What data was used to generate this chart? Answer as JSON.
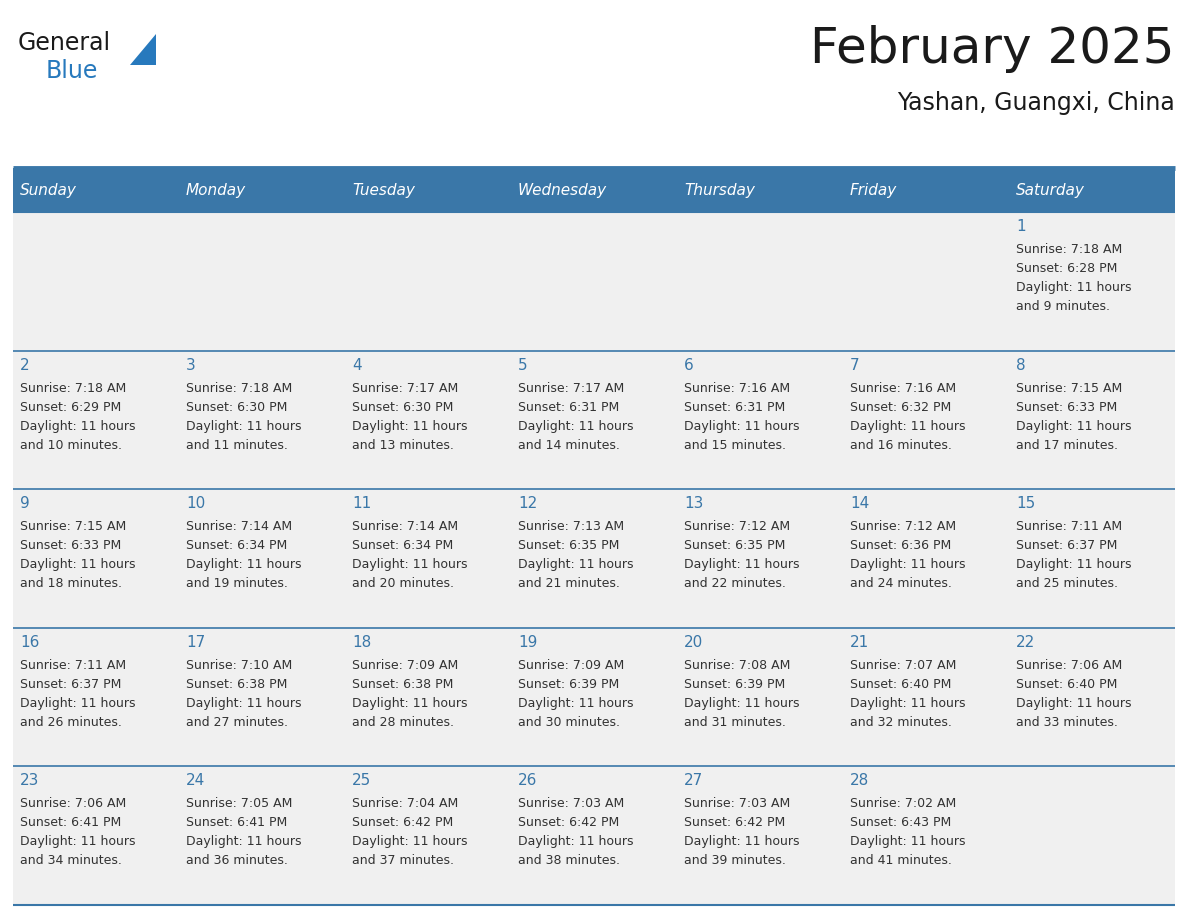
{
  "title": "February 2025",
  "subtitle": "Yashan, Guangxi, China",
  "header_color": "#3a77a8",
  "header_text_color": "#FFFFFF",
  "day_names": [
    "Sunday",
    "Monday",
    "Tuesday",
    "Wednesday",
    "Thursday",
    "Friday",
    "Saturday"
  ],
  "title_color": "#1a1a1a",
  "subtitle_color": "#1a1a1a",
  "cell_bg_color": "#f0f0f0",
  "divider_color": "#3a77a8",
  "day_num_color": "#3a77a8",
  "text_color": "#333333",
  "days": [
    {
      "day": 1,
      "col": 6,
      "row": 0,
      "sunrise": "7:18 AM",
      "sunset": "6:28 PM",
      "daylight": "11 hours and 9 minutes"
    },
    {
      "day": 2,
      "col": 0,
      "row": 1,
      "sunrise": "7:18 AM",
      "sunset": "6:29 PM",
      "daylight": "11 hours and 10 minutes"
    },
    {
      "day": 3,
      "col": 1,
      "row": 1,
      "sunrise": "7:18 AM",
      "sunset": "6:30 PM",
      "daylight": "11 hours and 11 minutes"
    },
    {
      "day": 4,
      "col": 2,
      "row": 1,
      "sunrise": "7:17 AM",
      "sunset": "6:30 PM",
      "daylight": "11 hours and 13 minutes"
    },
    {
      "day": 5,
      "col": 3,
      "row": 1,
      "sunrise": "7:17 AM",
      "sunset": "6:31 PM",
      "daylight": "11 hours and 14 minutes"
    },
    {
      "day": 6,
      "col": 4,
      "row": 1,
      "sunrise": "7:16 AM",
      "sunset": "6:31 PM",
      "daylight": "11 hours and 15 minutes"
    },
    {
      "day": 7,
      "col": 5,
      "row": 1,
      "sunrise": "7:16 AM",
      "sunset": "6:32 PM",
      "daylight": "11 hours and 16 minutes"
    },
    {
      "day": 8,
      "col": 6,
      "row": 1,
      "sunrise": "7:15 AM",
      "sunset": "6:33 PM",
      "daylight": "11 hours and 17 minutes"
    },
    {
      "day": 9,
      "col": 0,
      "row": 2,
      "sunrise": "7:15 AM",
      "sunset": "6:33 PM",
      "daylight": "11 hours and 18 minutes"
    },
    {
      "day": 10,
      "col": 1,
      "row": 2,
      "sunrise": "7:14 AM",
      "sunset": "6:34 PM",
      "daylight": "11 hours and 19 minutes"
    },
    {
      "day": 11,
      "col": 2,
      "row": 2,
      "sunrise": "7:14 AM",
      "sunset": "6:34 PM",
      "daylight": "11 hours and 20 minutes"
    },
    {
      "day": 12,
      "col": 3,
      "row": 2,
      "sunrise": "7:13 AM",
      "sunset": "6:35 PM",
      "daylight": "11 hours and 21 minutes"
    },
    {
      "day": 13,
      "col": 4,
      "row": 2,
      "sunrise": "7:12 AM",
      "sunset": "6:35 PM",
      "daylight": "11 hours and 22 minutes"
    },
    {
      "day": 14,
      "col": 5,
      "row": 2,
      "sunrise": "7:12 AM",
      "sunset": "6:36 PM",
      "daylight": "11 hours and 24 minutes"
    },
    {
      "day": 15,
      "col": 6,
      "row": 2,
      "sunrise": "7:11 AM",
      "sunset": "6:37 PM",
      "daylight": "11 hours and 25 minutes"
    },
    {
      "day": 16,
      "col": 0,
      "row": 3,
      "sunrise": "7:11 AM",
      "sunset": "6:37 PM",
      "daylight": "11 hours and 26 minutes"
    },
    {
      "day": 17,
      "col": 1,
      "row": 3,
      "sunrise": "7:10 AM",
      "sunset": "6:38 PM",
      "daylight": "11 hours and 27 minutes"
    },
    {
      "day": 18,
      "col": 2,
      "row": 3,
      "sunrise": "7:09 AM",
      "sunset": "6:38 PM",
      "daylight": "11 hours and 28 minutes"
    },
    {
      "day": 19,
      "col": 3,
      "row": 3,
      "sunrise": "7:09 AM",
      "sunset": "6:39 PM",
      "daylight": "11 hours and 30 minutes"
    },
    {
      "day": 20,
      "col": 4,
      "row": 3,
      "sunrise": "7:08 AM",
      "sunset": "6:39 PM",
      "daylight": "11 hours and 31 minutes"
    },
    {
      "day": 21,
      "col": 5,
      "row": 3,
      "sunrise": "7:07 AM",
      "sunset": "6:40 PM",
      "daylight": "11 hours and 32 minutes"
    },
    {
      "day": 22,
      "col": 6,
      "row": 3,
      "sunrise": "7:06 AM",
      "sunset": "6:40 PM",
      "daylight": "11 hours and 33 minutes"
    },
    {
      "day": 23,
      "col": 0,
      "row": 4,
      "sunrise": "7:06 AM",
      "sunset": "6:41 PM",
      "daylight": "11 hours and 34 minutes"
    },
    {
      "day": 24,
      "col": 1,
      "row": 4,
      "sunrise": "7:05 AM",
      "sunset": "6:41 PM",
      "daylight": "11 hours and 36 minutes"
    },
    {
      "day": 25,
      "col": 2,
      "row": 4,
      "sunrise": "7:04 AM",
      "sunset": "6:42 PM",
      "daylight": "11 hours and 37 minutes"
    },
    {
      "day": 26,
      "col": 3,
      "row": 4,
      "sunrise": "7:03 AM",
      "sunset": "6:42 PM",
      "daylight": "11 hours and 38 minutes"
    },
    {
      "day": 27,
      "col": 4,
      "row": 4,
      "sunrise": "7:03 AM",
      "sunset": "6:42 PM",
      "daylight": "11 hours and 39 minutes"
    },
    {
      "day": 28,
      "col": 5,
      "row": 4,
      "sunrise": "7:02 AM",
      "sunset": "6:43 PM",
      "daylight": "11 hours and 41 minutes"
    }
  ],
  "logo_text1": "General",
  "logo_text2": "Blue",
  "logo_color1": "#1a1a1a",
  "logo_color2": "#2779BD",
  "logo_triangle_color": "#2779BD"
}
